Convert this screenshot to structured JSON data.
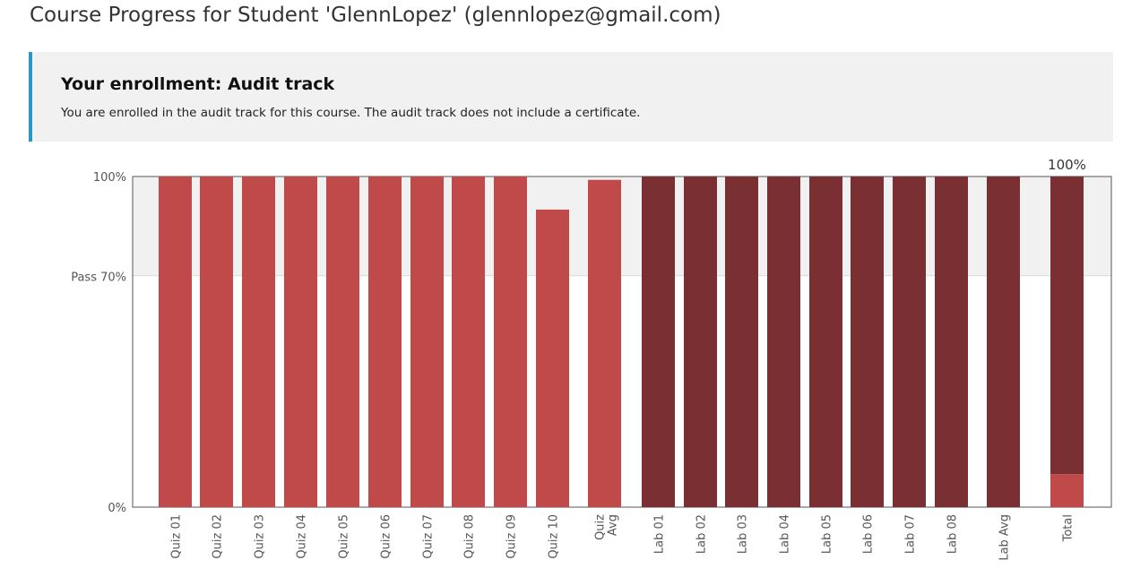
{
  "page_title": "Course Progress for Student 'GlennLopez' (glennlopez@gmail.com)",
  "enrollment": {
    "heading": "Your enrollment: Audit track",
    "message": "You are enrolled in the audit track for this course. The audit track does not include a certificate."
  },
  "colors": {
    "accent_bar": "#2a97c9",
    "quiz_bar": "#c04a4a",
    "lab_bar": "#7a3032",
    "pass_band": "#f1f1f1"
  },
  "chart_data": {
    "type": "bar",
    "ylabels": {
      "top": "100%",
      "pass": "Pass 70%",
      "bottom": "0%"
    },
    "ylim": [
      0,
      100
    ],
    "pass_threshold": 70,
    "total_label": "100%",
    "series": [
      {
        "group": "quiz",
        "items": [
          {
            "label": "Quiz 01",
            "value": 100
          },
          {
            "label": "Quiz 02",
            "value": 100
          },
          {
            "label": "Quiz 03",
            "value": 100
          },
          {
            "label": "Quiz 04",
            "value": 100
          },
          {
            "label": "Quiz 05",
            "value": 100
          },
          {
            "label": "Quiz 06",
            "value": 100
          },
          {
            "label": "Quiz 07",
            "value": 100
          },
          {
            "label": "Quiz 08",
            "value": 100
          },
          {
            "label": "Quiz 09",
            "value": 100
          },
          {
            "label": "Quiz 10",
            "value": 90
          },
          {
            "label": "Quiz Avg",
            "value": 99,
            "label_lines": [
              "Quiz",
              "Avg"
            ]
          }
        ]
      },
      {
        "group": "lab",
        "items": [
          {
            "label": "Lab 01",
            "value": 100
          },
          {
            "label": "Lab 02",
            "value": 100
          },
          {
            "label": "Lab 03",
            "value": 100
          },
          {
            "label": "Lab 04",
            "value": 100
          },
          {
            "label": "Lab 05",
            "value": 100
          },
          {
            "label": "Lab 06",
            "value": 100
          },
          {
            "label": "Lab 07",
            "value": 100
          },
          {
            "label": "Lab 08",
            "value": 100
          },
          {
            "label": "Lab Avg",
            "value": 100
          }
        ]
      }
    ],
    "total": {
      "label": "Total",
      "value": 100,
      "segments": [
        {
          "group": "quiz",
          "value": 10
        },
        {
          "group": "lab",
          "value": 90
        }
      ]
    }
  }
}
